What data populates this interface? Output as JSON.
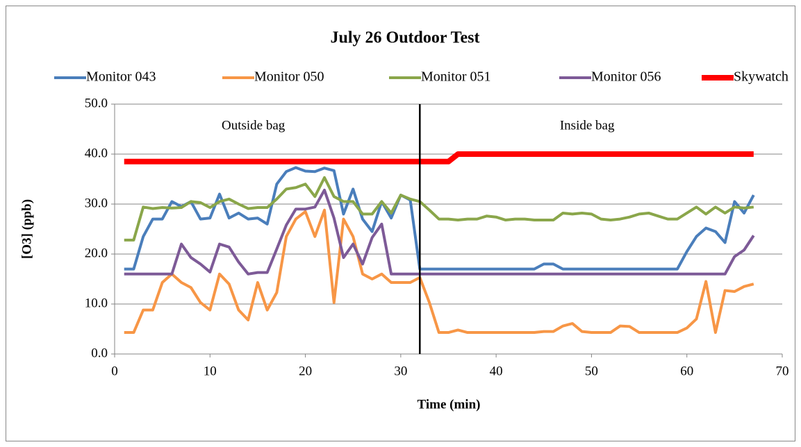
{
  "chart_data": {
    "type": "line",
    "title": "July 26 Outdoor Test",
    "xlabel": "Time (min)",
    "ylabel": "[O3] (ppb)",
    "annotations": [
      "Outside bag",
      "Inside bag"
    ],
    "vline": 32,
    "x": [
      1,
      2,
      3,
      4,
      5,
      6,
      7,
      8,
      9,
      10,
      11,
      12,
      13,
      14,
      15,
      16,
      17,
      18,
      19,
      20,
      21,
      22,
      23,
      24,
      25,
      26,
      27,
      28,
      29,
      30,
      31,
      32,
      33,
      34,
      35,
      36,
      37,
      38,
      39,
      40,
      41,
      42,
      43,
      44,
      45,
      46,
      47,
      48,
      49,
      50,
      51,
      52,
      53,
      54,
      55,
      56,
      57,
      58,
      59,
      60,
      61,
      62,
      63,
      64,
      65,
      66,
      67
    ],
    "series": [
      {
        "name": "Monitor 043",
        "color": "#4a7ebb",
        "width": 4,
        "values": [
          17,
          17,
          23.5,
          27,
          27,
          30.5,
          29.5,
          30.5,
          27,
          27.2,
          32,
          27.2,
          28.2,
          27,
          27.2,
          26,
          34,
          36.5,
          37.3,
          36.6,
          36.5,
          37.2,
          36.7,
          28,
          33,
          27,
          24.5,
          30.5,
          27.2,
          31.8,
          30.8,
          17,
          17,
          17,
          17,
          17,
          17,
          17,
          17,
          17,
          17,
          17,
          17,
          17,
          18,
          18,
          17,
          17,
          17,
          17,
          17,
          17,
          17,
          17,
          17,
          17,
          17,
          17,
          17,
          20.5,
          23.5,
          25.2,
          24.5,
          22.3,
          30.5,
          28.2,
          31.8
        ]
      },
      {
        "name": "Monitor 050",
        "color": "#f79646",
        "width": 4,
        "values": [
          4.3,
          4.3,
          8.8,
          8.8,
          14.3,
          16,
          14.3,
          13.3,
          10.3,
          8.8,
          16,
          14,
          8.8,
          6.8,
          14.3,
          8.8,
          12.3,
          23.5,
          27,
          28.5,
          23.5,
          28.8,
          10.3,
          27,
          23.5,
          16,
          15,
          16,
          14.3,
          14.3,
          14.3,
          15.3,
          10.3,
          4.3,
          4.3,
          4.8,
          4.3,
          4.3,
          4.3,
          4.3,
          4.3,
          4.3,
          4.3,
          4.3,
          4.5,
          4.5,
          5.6,
          6.1,
          4.5,
          4.3,
          4.3,
          4.3,
          5.6,
          5.5,
          4.3,
          4.3,
          4.3,
          4.3,
          4.3,
          5.2,
          7,
          14.5,
          4.3,
          12.7,
          12.5,
          13.5,
          14
        ]
      },
      {
        "name": "Monitor 051",
        "color": "#8aa64a",
        "width": 4,
        "values": [
          22.8,
          22.8,
          29.4,
          29.1,
          29.3,
          29.2,
          29.3,
          30.5,
          30.3,
          29.3,
          30.5,
          31,
          30,
          29.1,
          29.3,
          29.3,
          31,
          33,
          33.3,
          34,
          31.5,
          35.3,
          31.5,
          30.5,
          30.5,
          28,
          28,
          30.5,
          28.2,
          31.8,
          31,
          30.5,
          28.8,
          27,
          27,
          26.8,
          27,
          27,
          27.6,
          27.4,
          26.8,
          27,
          27,
          26.8,
          26.8,
          26.8,
          28.2,
          28,
          28.2,
          28,
          27,
          26.8,
          27,
          27.4,
          28,
          28.2,
          27.6,
          27,
          27,
          28.2,
          29.4,
          28,
          29.4,
          28.2,
          29.4,
          29.2,
          29.4
        ]
      },
      {
        "name": "Monitor 056",
        "color": "#7d5a97",
        "width": 4,
        "values": [
          16,
          16,
          16,
          16,
          16,
          16,
          22,
          19.3,
          18,
          16.4,
          22,
          21.4,
          18.4,
          16,
          16.3,
          16.3,
          21,
          25.8,
          29,
          29,
          29.4,
          32.8,
          27.2,
          19.3,
          22,
          18,
          23.3,
          26,
          16,
          16,
          16,
          16,
          16,
          16,
          16,
          16,
          16,
          16,
          16,
          16,
          16,
          16,
          16,
          16,
          16,
          16,
          16,
          16,
          16,
          16,
          16,
          16,
          16,
          16,
          16,
          16,
          16,
          16,
          16,
          16,
          16,
          16,
          16,
          16,
          19.5,
          20.8,
          23.7
        ]
      },
      {
        "name": "Skywatch",
        "color": "#ff0000",
        "width": 8,
        "values": [
          38.5,
          38.5,
          38.5,
          38.5,
          38.5,
          38.5,
          38.5,
          38.5,
          38.5,
          38.5,
          38.5,
          38.5,
          38.5,
          38.5,
          38.5,
          38.5,
          38.5,
          38.5,
          38.5,
          38.5,
          38.5,
          38.5,
          38.5,
          38.5,
          38.5,
          38.5,
          38.5,
          38.5,
          38.5,
          38.5,
          38.5,
          38.5,
          38.5,
          38.5,
          38.5,
          40,
          40,
          40,
          40,
          40,
          40,
          40,
          40,
          40,
          40,
          40,
          40,
          40,
          40,
          40,
          40,
          40,
          40,
          40,
          40,
          40,
          40,
          40,
          40,
          40,
          40,
          40,
          40,
          40,
          40,
          40,
          40
        ]
      }
    ],
    "xlim": [
      0,
      70
    ],
    "xticks": [
      0,
      10,
      20,
      30,
      40,
      50,
      60,
      70
    ],
    "ylim": [
      0,
      50
    ],
    "yticks": [
      {
        "value": 0,
        "label": "0.0"
      },
      {
        "value": 10,
        "label": "10.0"
      },
      {
        "value": 20,
        "label": "20.0"
      },
      {
        "value": 30,
        "label": "30.0"
      },
      {
        "value": 40,
        "label": "40.0"
      },
      {
        "value": 50,
        "label": "50.0"
      }
    ],
    "grid": true,
    "legend": "top"
  }
}
